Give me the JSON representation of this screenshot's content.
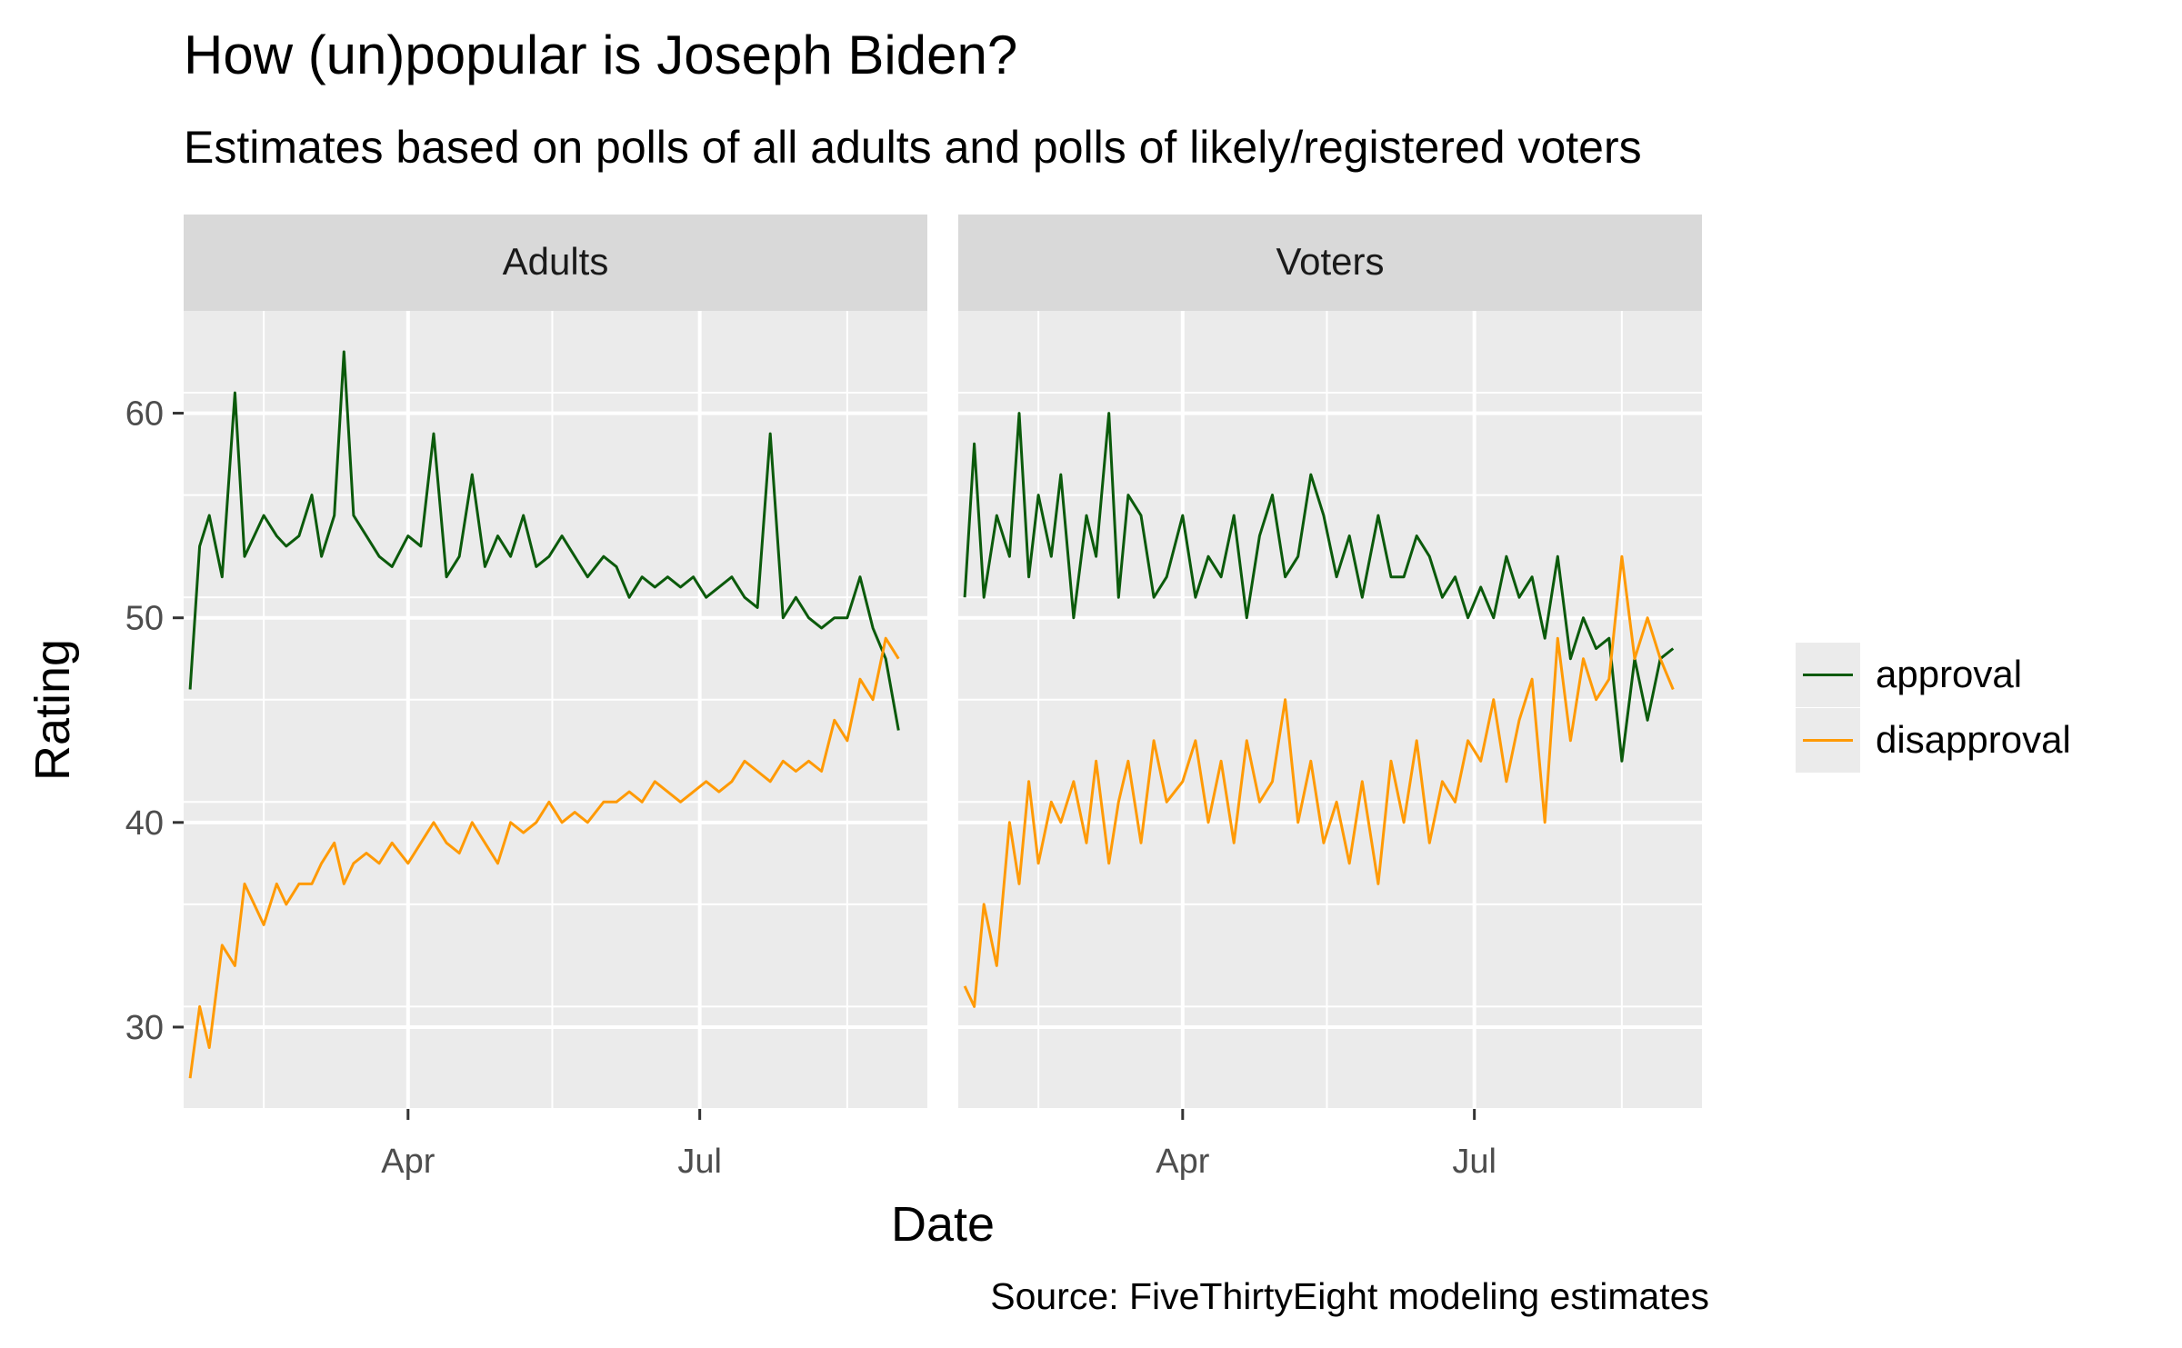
{
  "title": "How (un)popular is Joseph Biden?",
  "subtitle": "Estimates based on polls of all adults and polls of likely/registered voters",
  "caption": "Source: FiveThirtyEight modeling estimates",
  "colors": {
    "approval": "#0b5a0b",
    "disapproval": "#ff9a05",
    "panel_bg": "#ebebeb",
    "strip_bg": "#d9d9d9",
    "grid": "#ffffff"
  },
  "legend": [
    {
      "label": "approval",
      "color": "#0b5a0b"
    },
    {
      "label": "disapproval",
      "color": "#ff9a05"
    }
  ],
  "chart_data": {
    "type": "line",
    "title": "How (un)popular is Joseph Biden?",
    "subtitle": "Estimates based on polls of all adults and polls of likely/registered voters",
    "xlabel": "Date",
    "ylabel": "Rating",
    "x_ticks": [
      "Apr",
      "Jul"
    ],
    "x_tick_dates": [
      "2021-04-01",
      "2021-07-01"
    ],
    "xlim": [
      "2021-01-21",
      "2021-09-10"
    ],
    "y_ticks": [
      30,
      40,
      50,
      60
    ],
    "ylim": [
      26,
      65
    ],
    "grid": true,
    "legend_position": "right",
    "facets": [
      {
        "label": "Adults",
        "series": [
          {
            "name": "approval",
            "color": "#0b5a0b",
            "x": [
              "2021-01-23",
              "2021-01-26",
              "2021-01-29",
              "2021-02-02",
              "2021-02-06",
              "2021-02-09",
              "2021-02-12",
              "2021-02-15",
              "2021-02-19",
              "2021-02-22",
              "2021-02-26",
              "2021-03-02",
              "2021-03-05",
              "2021-03-09",
              "2021-03-12",
              "2021-03-15",
              "2021-03-19",
              "2021-03-23",
              "2021-03-27",
              "2021-04-01",
              "2021-04-05",
              "2021-04-09",
              "2021-04-13",
              "2021-04-17",
              "2021-04-21",
              "2021-04-25",
              "2021-04-29",
              "2021-05-03",
              "2021-05-07",
              "2021-05-11",
              "2021-05-15",
              "2021-05-19",
              "2021-05-23",
              "2021-05-27",
              "2021-06-01",
              "2021-06-05",
              "2021-06-09",
              "2021-06-13",
              "2021-06-17",
              "2021-06-21",
              "2021-06-25",
              "2021-06-29",
              "2021-07-03",
              "2021-07-07",
              "2021-07-11",
              "2021-07-15",
              "2021-07-19",
              "2021-07-23",
              "2021-07-27",
              "2021-07-31",
              "2021-08-04",
              "2021-08-08",
              "2021-08-12",
              "2021-08-16",
              "2021-08-20",
              "2021-08-24",
              "2021-08-28",
              "2021-09-01"
            ],
            "y": [
              46.5,
              53.5,
              55,
              52,
              61,
              53,
              54,
              55,
              54,
              53.5,
              54,
              56,
              53,
              55,
              63,
              55,
              54,
              53,
              52.5,
              54,
              53.5,
              59,
              52,
              53,
              57,
              52.5,
              54,
              53,
              55,
              52.5,
              53,
              54,
              53,
              52,
              53,
              52.5,
              51,
              52,
              51.5,
              52,
              51.5,
              52,
              51,
              51.5,
              52,
              51,
              50.5,
              59,
              50,
              51,
              50,
              49.5,
              50,
              50,
              52,
              49.5,
              48,
              44.5
            ]
          },
          {
            "name": "disapproval",
            "color": "#ff9a05",
            "x": [
              "2021-01-23",
              "2021-01-26",
              "2021-01-29",
              "2021-02-02",
              "2021-02-06",
              "2021-02-09",
              "2021-02-12",
              "2021-02-15",
              "2021-02-19",
              "2021-02-22",
              "2021-02-26",
              "2021-03-02",
              "2021-03-05",
              "2021-03-09",
              "2021-03-12",
              "2021-03-15",
              "2021-03-19",
              "2021-03-23",
              "2021-03-27",
              "2021-04-01",
              "2021-04-05",
              "2021-04-09",
              "2021-04-13",
              "2021-04-17",
              "2021-04-21",
              "2021-04-25",
              "2021-04-29",
              "2021-05-03",
              "2021-05-07",
              "2021-05-11",
              "2021-05-15",
              "2021-05-19",
              "2021-05-23",
              "2021-05-27",
              "2021-06-01",
              "2021-06-05",
              "2021-06-09",
              "2021-06-13",
              "2021-06-17",
              "2021-06-21",
              "2021-06-25",
              "2021-06-29",
              "2021-07-03",
              "2021-07-07",
              "2021-07-11",
              "2021-07-15",
              "2021-07-19",
              "2021-07-23",
              "2021-07-27",
              "2021-07-31",
              "2021-08-04",
              "2021-08-08",
              "2021-08-12",
              "2021-08-16",
              "2021-08-20",
              "2021-08-24",
              "2021-08-28",
              "2021-09-01"
            ],
            "y": [
              27.5,
              31,
              29,
              34,
              33,
              37,
              36,
              35,
              37,
              36,
              37,
              37,
              38,
              39,
              37,
              38,
              38.5,
              38,
              39,
              38,
              39,
              40,
              39,
              38.5,
              40,
              39,
              38,
              40,
              39.5,
              40,
              41,
              40,
              40.5,
              40,
              41,
              41,
              41.5,
              41,
              42,
              41.5,
              41,
              41.5,
              42,
              41.5,
              42,
              43,
              42.5,
              42,
              43,
              42.5,
              43,
              42.5,
              45,
              44,
              47,
              46,
              49,
              48
            ]
          }
        ]
      },
      {
        "label": "Voters",
        "series": [
          {
            "name": "approval",
            "color": "#0b5a0b",
            "x": [
              "2021-01-23",
              "2021-01-26",
              "2021-01-29",
              "2021-02-02",
              "2021-02-06",
              "2021-02-09",
              "2021-02-12",
              "2021-02-15",
              "2021-02-19",
              "2021-02-22",
              "2021-02-26",
              "2021-03-02",
              "2021-03-05",
              "2021-03-09",
              "2021-03-12",
              "2021-03-15",
              "2021-03-19",
              "2021-03-23",
              "2021-03-27",
              "2021-04-01",
              "2021-04-05",
              "2021-04-09",
              "2021-04-13",
              "2021-04-17",
              "2021-04-21",
              "2021-04-25",
              "2021-04-29",
              "2021-05-03",
              "2021-05-07",
              "2021-05-11",
              "2021-05-15",
              "2021-05-19",
              "2021-05-23",
              "2021-05-27",
              "2021-06-01",
              "2021-06-05",
              "2021-06-09",
              "2021-06-13",
              "2021-06-17",
              "2021-06-21",
              "2021-06-25",
              "2021-06-29",
              "2021-07-03",
              "2021-07-07",
              "2021-07-11",
              "2021-07-15",
              "2021-07-19",
              "2021-07-23",
              "2021-07-27",
              "2021-07-31",
              "2021-08-04",
              "2021-08-08",
              "2021-08-12",
              "2021-08-16",
              "2021-08-20",
              "2021-08-24",
              "2021-08-28",
              "2021-09-01"
            ],
            "y": [
              51,
              58.5,
              51,
              55,
              53,
              60,
              52,
              56,
              53,
              57,
              50,
              55,
              53,
              60,
              51,
              56,
              55,
              51,
              52,
              55,
              51,
              53,
              52,
              55,
              50,
              54,
              56,
              52,
              53,
              57,
              55,
              52,
              54,
              51,
              55,
              52,
              52,
              54,
              53,
              51,
              52,
              50,
              51.5,
              50,
              53,
              51,
              52,
              49,
              53,
              48,
              50,
              48.5,
              49,
              43,
              48,
              45,
              48,
              48.5
            ]
          },
          {
            "name": "disapproval",
            "color": "#ff9a05",
            "x": [
              "2021-01-23",
              "2021-01-26",
              "2021-01-29",
              "2021-02-02",
              "2021-02-06",
              "2021-02-09",
              "2021-02-12",
              "2021-02-15",
              "2021-02-19",
              "2021-02-22",
              "2021-02-26",
              "2021-03-02",
              "2021-03-05",
              "2021-03-09",
              "2021-03-12",
              "2021-03-15",
              "2021-03-19",
              "2021-03-23",
              "2021-03-27",
              "2021-04-01",
              "2021-04-05",
              "2021-04-09",
              "2021-04-13",
              "2021-04-17",
              "2021-04-21",
              "2021-04-25",
              "2021-04-29",
              "2021-05-03",
              "2021-05-07",
              "2021-05-11",
              "2021-05-15",
              "2021-05-19",
              "2021-05-23",
              "2021-05-27",
              "2021-06-01",
              "2021-06-05",
              "2021-06-09",
              "2021-06-13",
              "2021-06-17",
              "2021-06-21",
              "2021-06-25",
              "2021-06-29",
              "2021-07-03",
              "2021-07-07",
              "2021-07-11",
              "2021-07-15",
              "2021-07-19",
              "2021-07-23",
              "2021-07-27",
              "2021-07-31",
              "2021-08-04",
              "2021-08-08",
              "2021-08-12",
              "2021-08-16",
              "2021-08-20",
              "2021-08-24",
              "2021-08-28",
              "2021-09-01"
            ],
            "y": [
              32,
              31,
              36,
              33,
              40,
              37,
              42,
              38,
              41,
              40,
              42,
              39,
              43,
              38,
              41,
              43,
              39,
              44,
              41,
              42,
              44,
              40,
              43,
              39,
              44,
              41,
              42,
              46,
              40,
              43,
              39,
              41,
              38,
              42,
              37,
              43,
              40,
              44,
              39,
              42,
              41,
              44,
              43,
              46,
              42,
              45,
              47,
              40,
              49,
              44,
              48,
              46,
              47,
              53,
              48,
              50,
              48,
              46.5
            ]
          }
        ]
      }
    ]
  }
}
